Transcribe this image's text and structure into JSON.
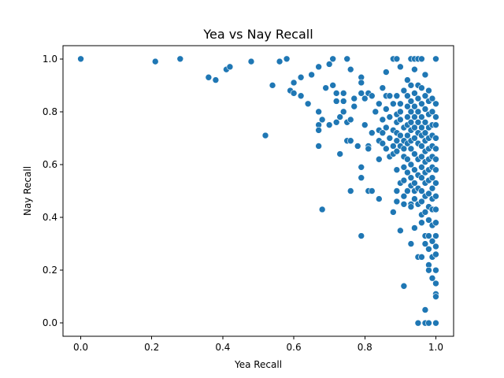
{
  "chart_data": {
    "type": "scatter",
    "title": "Yea vs Nay Recall",
    "xlabel": "Yea Recall",
    "ylabel": "Nay Recall",
    "xlim": [
      -0.05,
      1.05
    ],
    "ylim": [
      -0.05,
      1.05
    ],
    "xticks": [
      "0.0",
      "0.2",
      "0.4",
      "0.6",
      "0.8",
      "1.0"
    ],
    "yticks": [
      "0.0",
      "0.2",
      "0.4",
      "0.6",
      "0.8",
      "1.0"
    ],
    "grid": false,
    "marker_color": "#1f77b4",
    "marker_edge_color": "#ffffff",
    "points": [
      [
        0.0,
        1.0
      ],
      [
        0.21,
        0.99
      ],
      [
        0.28,
        1.0
      ],
      [
        0.36,
        0.93
      ],
      [
        0.38,
        0.92
      ],
      [
        0.41,
        0.96
      ],
      [
        0.42,
        0.97
      ],
      [
        0.48,
        0.99
      ],
      [
        0.52,
        0.71
      ],
      [
        0.54,
        0.9
      ],
      [
        0.56,
        0.99
      ],
      [
        0.58,
        1.0
      ],
      [
        0.59,
        0.88
      ],
      [
        0.6,
        0.91
      ],
      [
        0.6,
        0.87
      ],
      [
        0.62,
        0.93
      ],
      [
        0.62,
        0.86
      ],
      [
        0.64,
        0.83
      ],
      [
        0.65,
        0.94
      ],
      [
        0.67,
        0.97
      ],
      [
        0.67,
        0.8
      ],
      [
        0.67,
        0.75
      ],
      [
        0.67,
        0.73
      ],
      [
        0.67,
        0.67
      ],
      [
        0.68,
        0.77
      ],
      [
        0.68,
        0.43
      ],
      [
        0.69,
        0.89
      ],
      [
        0.7,
        0.98
      ],
      [
        0.7,
        0.75
      ],
      [
        0.71,
        1.0
      ],
      [
        0.71,
        0.9
      ],
      [
        0.72,
        0.87
      ],
      [
        0.72,
        0.84
      ],
      [
        0.72,
        0.76
      ],
      [
        0.73,
        0.78
      ],
      [
        0.73,
        0.64
      ],
      [
        0.74,
        0.87
      ],
      [
        0.74,
        0.84
      ],
      [
        0.74,
        0.8
      ],
      [
        0.75,
        1.0
      ],
      [
        0.75,
        0.76
      ],
      [
        0.75,
        0.69
      ],
      [
        0.76,
        0.96
      ],
      [
        0.76,
        0.77
      ],
      [
        0.76,
        0.69
      ],
      [
        0.76,
        0.5
      ],
      [
        0.77,
        0.85
      ],
      [
        0.77,
        0.82
      ],
      [
        0.78,
        0.67
      ],
      [
        0.79,
        0.93
      ],
      [
        0.79,
        0.91
      ],
      [
        0.79,
        0.87
      ],
      [
        0.79,
        0.59
      ],
      [
        0.79,
        0.55
      ],
      [
        0.79,
        0.33
      ],
      [
        0.8,
        0.85
      ],
      [
        0.8,
        0.75
      ],
      [
        0.81,
        0.87
      ],
      [
        0.81,
        0.67
      ],
      [
        0.81,
        0.66
      ],
      [
        0.81,
        0.5
      ],
      [
        0.82,
        0.86
      ],
      [
        0.82,
        0.72
      ],
      [
        0.82,
        0.5
      ],
      [
        0.83,
        0.8
      ],
      [
        0.84,
        0.83
      ],
      [
        0.84,
        0.73
      ],
      [
        0.84,
        0.69
      ],
      [
        0.84,
        0.62
      ],
      [
        0.84,
        0.47
      ],
      [
        0.85,
        0.89
      ],
      [
        0.85,
        0.77
      ],
      [
        0.85,
        0.72
      ],
      [
        0.85,
        0.68
      ],
      [
        0.86,
        0.95
      ],
      [
        0.86,
        0.86
      ],
      [
        0.86,
        0.81
      ],
      [
        0.86,
        0.74
      ],
      [
        0.86,
        0.66
      ],
      [
        0.87,
        0.86
      ],
      [
        0.87,
        0.78
      ],
      [
        0.87,
        0.7
      ],
      [
        0.87,
        0.63
      ],
      [
        0.88,
        1.0
      ],
      [
        0.88,
        0.83
      ],
      [
        0.88,
        0.73
      ],
      [
        0.88,
        0.67
      ],
      [
        0.88,
        0.64
      ],
      [
        0.88,
        0.42
      ],
      [
        0.89,
        1.0
      ],
      [
        0.89,
        0.86
      ],
      [
        0.89,
        0.79
      ],
      [
        0.89,
        0.76
      ],
      [
        0.89,
        0.72
      ],
      [
        0.89,
        0.69
      ],
      [
        0.89,
        0.65
      ],
      [
        0.89,
        0.58
      ],
      [
        0.89,
        0.5
      ],
      [
        0.89,
        0.46
      ],
      [
        0.9,
        0.97
      ],
      [
        0.9,
        0.83
      ],
      [
        0.9,
        0.8
      ],
      [
        0.9,
        0.77
      ],
      [
        0.9,
        0.71
      ],
      [
        0.9,
        0.67
      ],
      [
        0.9,
        0.53
      ],
      [
        0.9,
        0.35
      ],
      [
        0.91,
        0.88
      ],
      [
        0.91,
        0.74
      ],
      [
        0.91,
        0.69
      ],
      [
        0.91,
        0.66
      ],
      [
        0.91,
        0.63
      ],
      [
        0.91,
        0.59
      ],
      [
        0.91,
        0.54
      ],
      [
        0.91,
        0.48
      ],
      [
        0.91,
        0.45
      ],
      [
        0.91,
        0.14
      ],
      [
        0.92,
        0.92
      ],
      [
        0.92,
        0.86
      ],
      [
        0.92,
        0.82
      ],
      [
        0.92,
        0.78
      ],
      [
        0.92,
        0.75
      ],
      [
        0.92,
        0.71
      ],
      [
        0.92,
        0.68
      ],
      [
        0.92,
        0.62
      ],
      [
        0.92,
        0.57
      ],
      [
        0.92,
        0.5
      ],
      [
        0.93,
        1.0
      ],
      [
        0.93,
        0.9
      ],
      [
        0.93,
        0.84
      ],
      [
        0.93,
        0.8
      ],
      [
        0.93,
        0.76
      ],
      [
        0.93,
        0.73
      ],
      [
        0.93,
        0.69
      ],
      [
        0.93,
        0.66
      ],
      [
        0.93,
        0.6
      ],
      [
        0.93,
        0.55
      ],
      [
        0.93,
        0.52
      ],
      [
        0.93,
        0.45
      ],
      [
        0.93,
        0.44
      ],
      [
        0.93,
        0.3
      ],
      [
        0.94,
        1.0
      ],
      [
        0.94,
        0.96
      ],
      [
        0.94,
        0.87
      ],
      [
        0.94,
        0.82
      ],
      [
        0.94,
        0.78
      ],
      [
        0.94,
        0.74
      ],
      [
        0.94,
        0.7
      ],
      [
        0.94,
        0.64
      ],
      [
        0.94,
        0.58
      ],
      [
        0.94,
        0.53
      ],
      [
        0.94,
        0.5
      ],
      [
        0.94,
        0.47
      ],
      [
        0.94,
        0.36
      ],
      [
        0.95,
        1.0
      ],
      [
        0.95,
        0.9
      ],
      [
        0.95,
        0.85
      ],
      [
        0.95,
        0.8
      ],
      [
        0.95,
        0.76
      ],
      [
        0.95,
        0.72
      ],
      [
        0.95,
        0.68
      ],
      [
        0.95,
        0.62
      ],
      [
        0.95,
        0.56
      ],
      [
        0.95,
        0.51
      ],
      [
        0.95,
        0.45
      ],
      [
        0.95,
        0.25
      ],
      [
        0.95,
        0.0
      ],
      [
        0.96,
        1.0
      ],
      [
        0.96,
        0.89
      ],
      [
        0.96,
        0.83
      ],
      [
        0.96,
        0.78
      ],
      [
        0.96,
        0.74
      ],
      [
        0.96,
        0.71
      ],
      [
        0.96,
        0.67
      ],
      [
        0.96,
        0.63
      ],
      [
        0.96,
        0.59
      ],
      [
        0.96,
        0.55
      ],
      [
        0.96,
        0.5
      ],
      [
        0.96,
        0.46
      ],
      [
        0.96,
        0.41
      ],
      [
        0.96,
        0.38
      ],
      [
        0.96,
        0.25
      ],
      [
        0.97,
        0.94
      ],
      [
        0.97,
        0.86
      ],
      [
        0.97,
        0.81
      ],
      [
        0.97,
        0.76
      ],
      [
        0.97,
        0.72
      ],
      [
        0.97,
        0.69
      ],
      [
        0.97,
        0.65
      ],
      [
        0.97,
        0.61
      ],
      [
        0.97,
        0.57
      ],
      [
        0.97,
        0.53
      ],
      [
        0.97,
        0.48
      ],
      [
        0.97,
        0.42
      ],
      [
        0.97,
        0.33
      ],
      [
        0.97,
        0.3
      ],
      [
        0.97,
        0.05
      ],
      [
        0.97,
        0.0
      ],
      [
        0.98,
        0.88
      ],
      [
        0.98,
        0.84
      ],
      [
        0.98,
        0.79
      ],
      [
        0.98,
        0.74
      ],
      [
        0.98,
        0.7
      ],
      [
        0.98,
        0.66
      ],
      [
        0.98,
        0.62
      ],
      [
        0.98,
        0.58
      ],
      [
        0.98,
        0.54
      ],
      [
        0.98,
        0.49
      ],
      [
        0.98,
        0.44
      ],
      [
        0.98,
        0.39
      ],
      [
        0.98,
        0.33
      ],
      [
        0.98,
        0.28
      ],
      [
        0.98,
        0.22
      ],
      [
        0.98,
        0.2
      ],
      [
        0.98,
        0.0
      ],
      [
        0.99,
        0.85
      ],
      [
        0.99,
        0.8
      ],
      [
        0.99,
        0.75
      ],
      [
        0.99,
        0.71
      ],
      [
        0.99,
        0.67
      ],
      [
        0.99,
        0.63
      ],
      [
        0.99,
        0.59
      ],
      [
        0.99,
        0.55
      ],
      [
        0.99,
        0.51
      ],
      [
        0.99,
        0.47
      ],
      [
        0.99,
        0.43
      ],
      [
        0.99,
        0.37
      ],
      [
        0.99,
        0.31
      ],
      [
        0.99,
        0.25
      ],
      [
        0.99,
        0.17
      ],
      [
        1.0,
        1.0
      ],
      [
        1.0,
        0.83
      ],
      [
        1.0,
        0.78
      ],
      [
        1.0,
        0.75
      ],
      [
        1.0,
        0.7
      ],
      [
        1.0,
        0.66
      ],
      [
        1.0,
        0.62
      ],
      [
        1.0,
        0.58
      ],
      [
        1.0,
        0.53
      ],
      [
        1.0,
        0.48
      ],
      [
        1.0,
        0.43
      ],
      [
        1.0,
        0.38
      ],
      [
        1.0,
        0.33
      ],
      [
        1.0,
        0.29
      ],
      [
        1.0,
        0.26
      ],
      [
        1.0,
        0.2
      ],
      [
        1.0,
        0.15
      ],
      [
        1.0,
        0.11
      ],
      [
        1.0,
        0.1
      ],
      [
        1.0,
        0.0
      ]
    ]
  }
}
